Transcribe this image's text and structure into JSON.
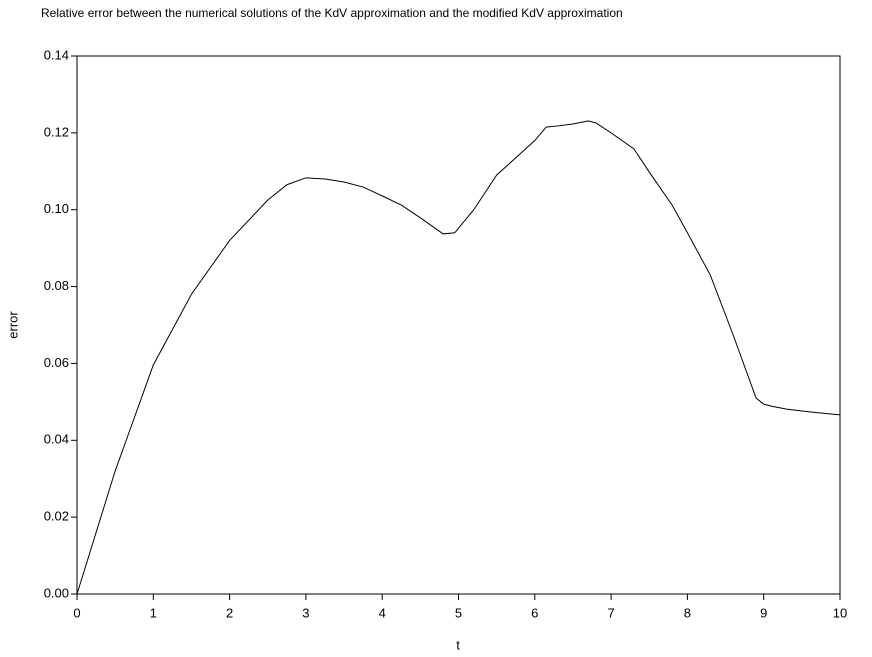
{
  "chart_data": {
    "type": "line",
    "title": "Relative error between the numerical solutions of the KdV approximation and the modified KdV approximation",
    "x_label": "t",
    "y_label": "error",
    "x": [
      0,
      0.5,
      1,
      1.5,
      2,
      2.5,
      2.75,
      3,
      3.25,
      3.5,
      3.75,
      4,
      4.25,
      4.5,
      4.8,
      4.95,
      5.2,
      5.5,
      5.75,
      6,
      6.15,
      6.3,
      6.5,
      6.7,
      6.8,
      7,
      7.3,
      7.5,
      7.8,
      8,
      8.3,
      8.6,
      8.9,
      9,
      9.1,
      9.3,
      9.6,
      10
    ],
    "series": [
      {
        "name": "error",
        "color": "#000000",
        "values": [
          0,
          0.032,
          0.0596,
          0.078,
          0.092,
          0.1025,
          0.1065,
          0.1083,
          0.108,
          0.1072,
          0.1059,
          0.1036,
          0.1012,
          0.0979,
          0.0937,
          0.094,
          0.1,
          0.109,
          0.1135,
          0.118,
          0.1215,
          0.1218,
          0.1223,
          0.1231,
          0.1226,
          0.12,
          0.1158,
          0.1098,
          0.1012,
          0.094,
          0.083,
          0.0674,
          0.051,
          0.0494,
          0.0489,
          0.0481,
          0.0474,
          0.0466
        ]
      }
    ],
    "xlim": [
      0,
      10
    ],
    "xticks": [
      0,
      1,
      2,
      3,
      4,
      5,
      6,
      7,
      8,
      9,
      10
    ],
    "ylim": [
      0,
      0.14
    ],
    "yticks": [
      {
        "value": 0,
        "label": "0.00"
      },
      0.02,
      0.04,
      0.06,
      0.08,
      {
        "value": 0.1,
        "label": "0.10"
      },
      0.12,
      0.14
    ]
  }
}
